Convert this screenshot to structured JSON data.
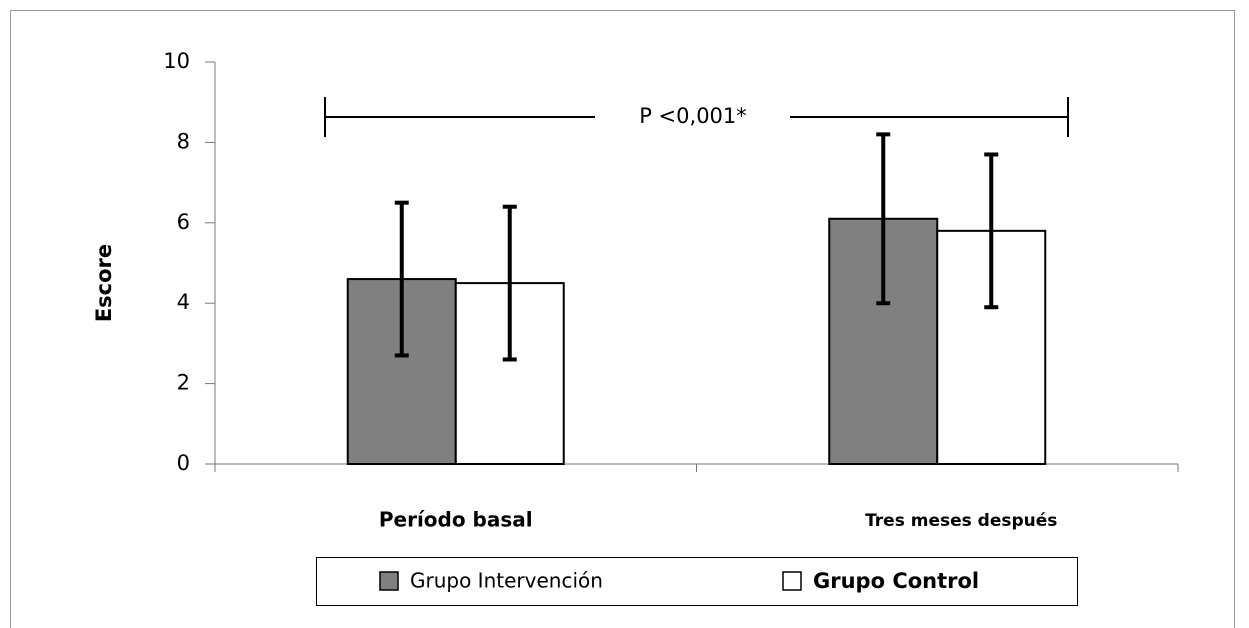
{
  "chart_data": {
    "type": "bar",
    "y_label": "Escore",
    "categories": [
      "Período basal",
      "Tres meses después"
    ],
    "series": [
      {
        "name": "Grupo Intervención",
        "color": "#808080",
        "values": [
          4.6,
          6.1
        ],
        "errors": [
          1.9,
          2.1
        ]
      },
      {
        "name": "Grupo Control",
        "color": "#ffffff",
        "values": [
          4.5,
          5.8
        ],
        "errors": [
          1.9,
          1.9
        ]
      }
    ],
    "ylim": [
      0,
      10
    ],
    "yticks": [
      0,
      2,
      4,
      6,
      8,
      10
    ],
    "annotation": "P <0,001*",
    "legend": "bottom"
  }
}
